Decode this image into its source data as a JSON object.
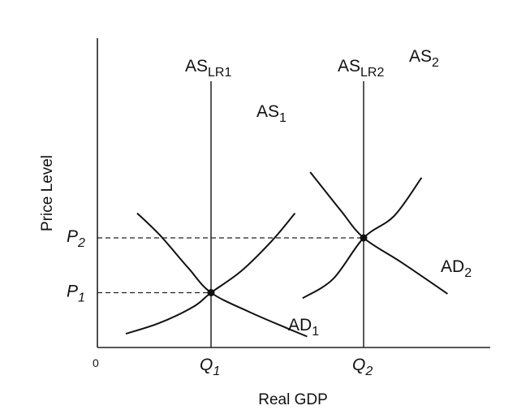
{
  "chart_data": {
    "type": "line",
    "title": "",
    "xlabel": "Real GDP",
    "ylabel": "Price Level",
    "origin_label": "0",
    "x_ticks": [
      {
        "id": "Q1",
        "base": "Q",
        "sub": "1",
        "x": 1
      },
      {
        "id": "Q2",
        "base": "Q",
        "sub": "2",
        "x": 2
      }
    ],
    "y_ticks": [
      {
        "id": "P1",
        "base": "P",
        "sub": "1",
        "y": 1
      },
      {
        "id": "P2",
        "base": "P",
        "sub": "2",
        "y": 2
      }
    ],
    "xlim": [
      0,
      2.8
    ],
    "ylim": [
      0,
      3.4
    ],
    "grid": false,
    "series": [
      {
        "name": "AS1",
        "base": "AS",
        "sub": "1",
        "kind": "curve",
        "points": [
          [
            0.25,
            0.25
          ],
          [
            0.55,
            0.45
          ],
          [
            0.85,
            0.75
          ],
          [
            1,
            1
          ],
          [
            1.2,
            1.4
          ],
          [
            1.4,
            1.95
          ],
          [
            1.55,
            2.45
          ]
        ]
      },
      {
        "name": "AD1",
        "base": "AD",
        "sub": "1",
        "kind": "curve",
        "points": [
          [
            0.35,
            2.45
          ],
          [
            0.55,
            2.05
          ],
          [
            0.8,
            1.45
          ],
          [
            1,
            1
          ],
          [
            1.25,
            0.65
          ],
          [
            1.5,
            0.35
          ],
          [
            1.63,
            0.2
          ]
        ]
      },
      {
        "name": "AS2",
        "base": "AS",
        "sub": "2",
        "kind": "curve",
        "points": [
          [
            1.6,
            0.9
          ],
          [
            1.8,
            1.25
          ],
          [
            2,
            2
          ],
          [
            2.2,
            2.4
          ],
          [
            2.38,
            3.1
          ]
        ]
      },
      {
        "name": "AD2",
        "base": "AD",
        "sub": "2",
        "kind": "curve",
        "points": [
          [
            1.65,
            3.2
          ],
          [
            1.85,
            2.5
          ],
          [
            2,
            2
          ],
          [
            2.25,
            1.55
          ],
          [
            2.55,
            0.98
          ]
        ]
      },
      {
        "name": "ASLR1",
        "base": "AS",
        "sub": "LR1",
        "kind": "vertical",
        "x": 1
      },
      {
        "name": "ASLR2",
        "base": "AS",
        "sub": "LR2",
        "kind": "vertical",
        "x": 2
      }
    ],
    "equilibria": [
      {
        "x": 1,
        "y": 1
      },
      {
        "x": 2,
        "y": 2
      }
    ]
  }
}
